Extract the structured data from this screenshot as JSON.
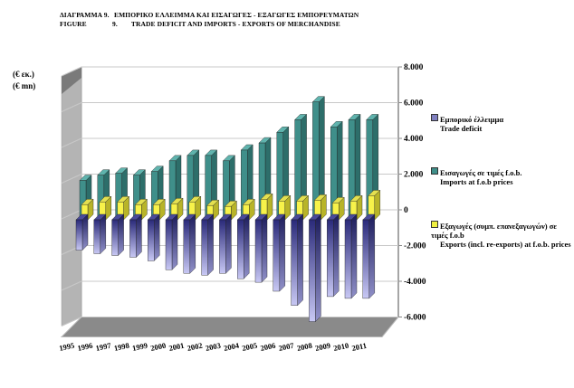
{
  "header": {
    "line1_label": "ΔΙΑΓΡΑΜΜΑ 9.",
    "line1_text": "ΕΜΠΟΡΙΚΟ ΕΛΛΕΙΜΜΑ ΚΑΙ ΕΙΣΑΓΩΓΕΣ - ΕΞΑΓΩΓΕΣ ΕΜΠΟΡΕΥΜΑΤΩΝ",
    "line2_label": "FIGURE",
    "line2_num": "9.",
    "line2_text": "TRADE DEFICIT AND IMPORTS - EXPORTS OF MERCHANDISE"
  },
  "units": {
    "greek": "(€ εκ.)",
    "english": "(€ mn)"
  },
  "legend": [
    {
      "greek": "Εμπορικό έλλειμμα",
      "english": "Trade deficit",
      "color": "#8080c0"
    },
    {
      "greek": "Εισαγωγές σε τιμές f.o.b.",
      "english": "Imports at f.o.b prices",
      "color": "#3f8f8a"
    },
    {
      "greek": "Εξαγωγές (συμπ. επανεξαγωγών) σε τιμές f.o.b",
      "english": "Exports (incl. re-exports) at f.o.b. prices",
      "color": "#f0f040"
    }
  ],
  "chart_data": {
    "type": "bar",
    "style": "3d-clustered",
    "title": "Trade deficit and imports - exports of merchandise",
    "xlabel": "",
    "ylabel": "(€ mn)",
    "ylim": [
      -6000,
      8000
    ],
    "yticks": [
      8000,
      6000,
      4000,
      2000,
      0,
      -2000,
      -4000,
      -6000
    ],
    "ytick_labels": [
      "8.000",
      "6.000",
      "4.000",
      "2.000",
      "0",
      "-2.000",
      "-4.000",
      "-6.000"
    ],
    "y_axis_side": "right",
    "grid": true,
    "legend_position": "right",
    "categories": [
      "1995",
      "1996",
      "1997",
      "1998",
      "1999",
      "2000",
      "2001",
      "2002",
      "2003",
      "2004",
      "2005",
      "2006",
      "2007",
      "2008",
      "2009",
      "2010",
      "2011"
    ],
    "series": [
      {
        "name": "Trade deficit",
        "color": "#8080c0",
        "values": [
          -1700,
          -1900,
          -2000,
          -2100,
          -2300,
          -2800,
          -3000,
          -3100,
          -3000,
          -3300,
          -3500,
          -4000,
          -4800,
          -5700,
          -4300,
          -4400,
          -4400
        ]
      },
      {
        "name": "Imports at f.o.b prices",
        "color": "#3f8f8a",
        "values": [
          2200,
          2500,
          2600,
          2500,
          2700,
          3300,
          3600,
          3600,
          3300,
          3900,
          4300,
          4900,
          5600,
          6600,
          5200,
          5600,
          5600
        ]
      },
      {
        "name": "Exports (incl. re-exports) at f.o.b. prices",
        "color": "#f0f040",
        "values": [
          850,
          1000,
          1000,
          850,
          850,
          900,
          1000,
          800,
          750,
          850,
          1150,
          1050,
          1050,
          1100,
          950,
          1050,
          1350
        ]
      }
    ]
  }
}
